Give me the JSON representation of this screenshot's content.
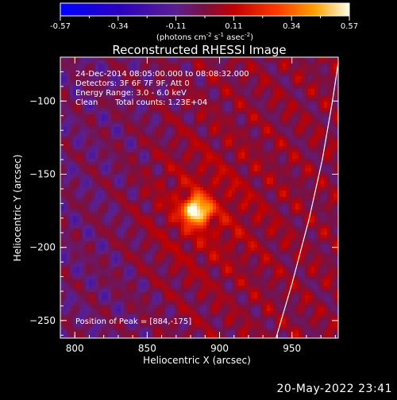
{
  "chart_data": {
    "type": "heatmap",
    "title": "Reconstructed RHESSI Image",
    "xlabel": "Heliocentric X (arcsec)",
    "ylabel": "Heliocentric Y (arcsec)",
    "xlim": [
      790,
      982
    ],
    "ylim": [
      -262,
      -70
    ],
    "xticks": [
      "800",
      "850",
      "900",
      "950"
    ],
    "yticks": [
      "-100",
      "-150",
      "-200",
      "-250"
    ],
    "colorbar": {
      "ticks": [
        "-0.57",
        "-0.34",
        "-0.11",
        "0.11",
        "0.34",
        "0.57"
      ],
      "min": -0.57,
      "max": 0.57,
      "unit_prefix": "(photons cm",
      "unit_exp1": "-2",
      "unit_mid": " s",
      "unit_exp2": "-1",
      "unit_mid2": " asec",
      "unit_exp3": "-2",
      "unit_suffix": ")"
    },
    "peak": {
      "x": 884,
      "y": -175
    },
    "limb_points": [
      [
        939,
        -262
      ],
      [
        950,
        -225
      ],
      [
        962,
        -180
      ],
      [
        971,
        -140
      ],
      [
        978,
        -100
      ],
      [
        982,
        -74
      ]
    ],
    "annotations": {
      "time_range": "24-Dec-2014 08:05:00.000 to 08:08:32.000",
      "detectors": "Detectors: 3F 6F 7F 9F, Att 0",
      "energy": "Energy Range: 3.0 - 6.0 keV",
      "method": "Clean",
      "counts": "Total counts: 1.23E+04",
      "peak_label": "Position of Peak = [884,-175]"
    }
  },
  "footer": {
    "timestamp": "20-May-2022 23:41"
  }
}
